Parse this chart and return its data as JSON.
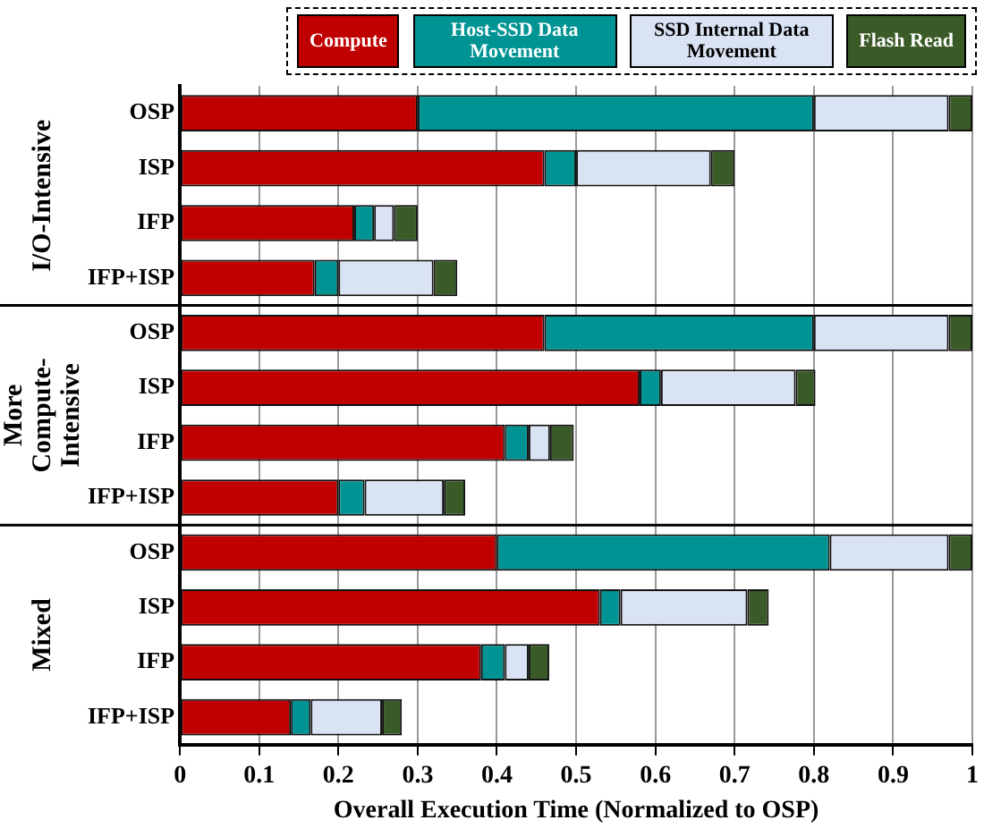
{
  "chart_data": {
    "type": "bar",
    "orientation": "horizontal",
    "stacked": true,
    "xlabel": "Overall Execution Time (Normalized to OSP)",
    "categories": [
      "OSP",
      "ISP",
      "IFP",
      "IFP+ISP",
      "OSP",
      "ISP",
      "IFP",
      "IFP+ISP",
      "OSP",
      "ISP",
      "IFP",
      "IFP+ISP"
    ],
    "series": [
      {
        "name": "Compute",
        "color": "#c00000",
        "values": [
          0.3,
          0.46,
          0.22,
          0.17,
          0.46,
          0.58,
          0.41,
          0.2,
          0.4,
          0.53,
          0.38,
          0.14
        ]
      },
      {
        "name": "Host-SSD Data Movement",
        "color": "#009393",
        "values": [
          0.5,
          0.04,
          0.025,
          0.03,
          0.34,
          0.027,
          0.03,
          0.033,
          0.42,
          0.026,
          0.03,
          0.025
        ]
      },
      {
        "name": "SSD Internal Data Movement",
        "color": "#dae3f3",
        "values": [
          0.17,
          0.17,
          0.025,
          0.12,
          0.17,
          0.17,
          0.027,
          0.1,
          0.15,
          0.16,
          0.03,
          0.09
        ]
      },
      {
        "name": "Flash Read",
        "color": "#3a5a28",
        "values": [
          0.03,
          0.03,
          0.03,
          0.03,
          0.03,
          0.025,
          0.03,
          0.027,
          0.03,
          0.027,
          0.026,
          0.025
        ]
      }
    ],
    "annotations": [
      "I/O-Intensive",
      "More Compute-Intensive",
      "Mixed"
    ],
    "xlim": [
      0,
      1
    ],
    "xticks": [
      0,
      0.1,
      0.2,
      0.3,
      0.4,
      0.5,
      0.6,
      0.7,
      0.8,
      0.9,
      1
    ],
    "grid": "x",
    "legend": "top"
  }
}
